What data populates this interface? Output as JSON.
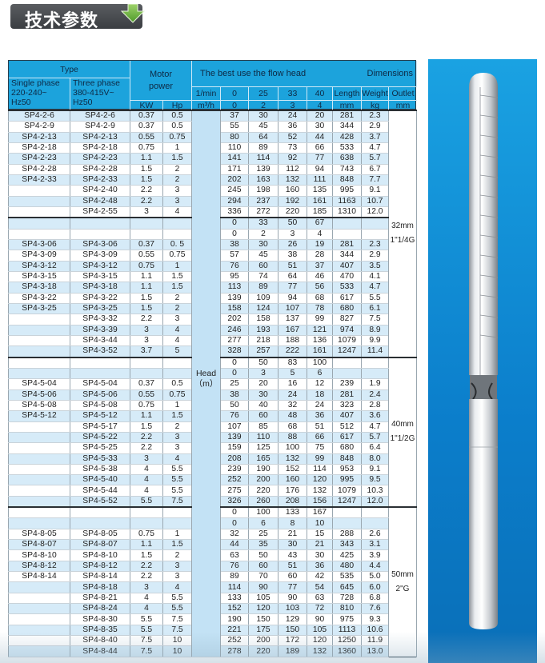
{
  "title": {
    "text": "技术参数",
    "icon": "green-down-arrow-icon"
  },
  "colors": {
    "header": "#1ca3dc",
    "stripe": "#d6ebf8",
    "head_column": "#c3e2f5",
    "panel": "#0b7ecb",
    "arrow": "#6cb33f"
  },
  "header": {
    "type": "Type",
    "single_phase": [
      "Single phase",
      "220-240~",
      "Hz50"
    ],
    "three_phase": [
      "Three phase",
      "380-415V~",
      "Hz50"
    ],
    "motor_power": [
      "Motor",
      "power"
    ],
    "kw": "KW",
    "hp": "Hp",
    "best_use": "The best use the flow head",
    "dimensions": "Dimensions",
    "lpm_label": "1/min",
    "m3h_label": "m³/h",
    "lpm": [
      "0",
      "25",
      "33",
      "40"
    ],
    "m3h": [
      "0",
      "2",
      "3",
      "4"
    ],
    "length": "Length",
    "weight": "Weight",
    "outlet": "Outlet",
    "length_unit": "mm",
    "weight_unit": "kg",
    "outlet_unit": "mm"
  },
  "head_label": [
    "Head",
    "（m）"
  ],
  "groups": [
    {
      "outlet": [
        "32mm",
        "1\"1/4G"
      ],
      "rows": [
        [
          "SP4-2-6",
          "SP4-2-6",
          "0.37",
          "0.5",
          "37",
          "30",
          "24",
          "20",
          "281",
          "2.3"
        ],
        [
          "SP4-2-9",
          "SP4-2-9",
          "0.37",
          "0.5",
          "55",
          "45",
          "36",
          "30",
          "344",
          "2.9"
        ],
        [
          "SP4-2-13",
          "SP4-2-13",
          "0.55",
          "0.75",
          "80",
          "64",
          "52",
          "44",
          "428",
          "3.7"
        ],
        [
          "SP4-2-18",
          "SP4-2-18",
          "0.75",
          "1",
          "110",
          "89",
          "73",
          "66",
          "533",
          "4.7"
        ],
        [
          "SP4-2-23",
          "SP4-2-23",
          "1.1",
          "1.5",
          "141",
          "114",
          "92",
          "77",
          "638",
          "5.7"
        ],
        [
          "SP4-2-28",
          "SP4-2-28",
          "1.5",
          "2",
          "171",
          "139",
          "112",
          "94",
          "743",
          "6.7"
        ],
        [
          "SP4-2-33",
          "SP4-2-33",
          "1.5",
          "2",
          "202",
          "163",
          "132",
          "111",
          "848",
          "7.7"
        ],
        [
          "",
          "SP4-2-40",
          "2.2",
          "3",
          "245",
          "198",
          "160",
          "135",
          "995",
          "9.1"
        ],
        [
          "",
          "SP4-2-48",
          "2.2",
          "3",
          "294",
          "237",
          "192",
          "161",
          "1163",
          "10.7"
        ],
        [
          "",
          "SP4-2-55",
          "3",
          "4",
          "336",
          "272",
          "220",
          "185",
          "1310",
          "12.0"
        ]
      ]
    },
    {
      "lpm": [
        "0",
        "33",
        "50",
        "67"
      ],
      "m3h": [
        "0",
        "2",
        "3",
        "4"
      ],
      "rows": [
        [
          "SP4-3-06",
          "SP4-3-06",
          "0.37",
          "0. 5",
          "38",
          "30",
          "26",
          "19",
          "281",
          "2.3"
        ],
        [
          "SP4-3-09",
          "SP4-3-09",
          "0.55",
          "0.75",
          "57",
          "45",
          "38",
          "28",
          "344",
          "2.9"
        ],
        [
          "SP4-3-12",
          "SP4-3-12",
          "0.75",
          "1",
          "76",
          "60",
          "51",
          "37",
          "407",
          "3.5"
        ],
        [
          "SP4-3-15",
          "SP4-3-15",
          "1.1",
          "1.5",
          "95",
          "74",
          "64",
          "46",
          "470",
          "4.1"
        ],
        [
          "SP4-3-18",
          "SP4-3-18",
          "1.1",
          "1.5",
          "113",
          "89",
          "77",
          "56",
          "533",
          "4.7"
        ],
        [
          "SP4-3-22",
          "SP4-3-22",
          "1.5",
          "2",
          "139",
          "109",
          "94",
          "68",
          "617",
          "5.5"
        ],
        [
          "SP4-3-25",
          "SP4-3-25",
          "1.5",
          "2",
          "158",
          "124",
          "107",
          "78",
          "680",
          "6.1"
        ],
        [
          "",
          "SP4-3-32",
          "2.2",
          "3",
          "202",
          "158",
          "137",
          "99",
          "827",
          "7.5"
        ],
        [
          "",
          "SP4-3-39",
          "3",
          "4",
          "246",
          "193",
          "167",
          "121",
          "974",
          "8.9"
        ],
        [
          "",
          "SP4-3-44",
          "3",
          "4",
          "277",
          "218",
          "188",
          "136",
          "1079",
          "9.9"
        ],
        [
          "",
          "SP4-3-52",
          "3.7",
          "5",
          "328",
          "257",
          "222",
          "161",
          "1247",
          "11.4"
        ]
      ]
    },
    {
      "lpm": [
        "0",
        "50",
        "83",
        "100"
      ],
      "m3h": [
        "0",
        "3",
        "5",
        "6"
      ],
      "outlet": [
        "40mm",
        "1\"1/2G"
      ],
      "rows": [
        [
          "SP4-5-04",
          "SP4-5-04",
          "0.37",
          "0.5",
          "25",
          "20",
          "16",
          "12",
          "239",
          "1.9"
        ],
        [
          "SP4-5-06",
          "SP4-5-06",
          "0.55",
          "0.75",
          "38",
          "30",
          "24",
          "18",
          "281",
          "2.4"
        ],
        [
          "SP4-5-08",
          "SP4-5-08",
          "0.75",
          "1",
          "50",
          "40",
          "32",
          "24",
          "323",
          "2.8"
        ],
        [
          "SP4-5-12",
          "SP4-5-12",
          "1.1",
          "1.5",
          "76",
          "60",
          "48",
          "36",
          "407",
          "3.6"
        ],
        [
          "",
          "SP4-5-17",
          "1.5",
          "2",
          "107",
          "85",
          "68",
          "51",
          "512",
          "4.7"
        ],
        [
          "",
          "SP4-5-22",
          "2.2",
          "3",
          "139",
          "110",
          "88",
          "66",
          "617",
          "5.7"
        ],
        [
          "",
          "SP4-5-25",
          "2.2",
          "3",
          "159",
          "125",
          "100",
          "75",
          "680",
          "6.4"
        ],
        [
          "",
          "SP4-5-33",
          "3",
          "4",
          "208",
          "165",
          "132",
          "99",
          "848",
          "8.0"
        ],
        [
          "",
          "SP4-5-38",
          "4",
          "5.5",
          "239",
          "190",
          "152",
          "114",
          "953",
          "9.1"
        ],
        [
          "",
          "SP4-5-40",
          "4",
          "5.5",
          "252",
          "200",
          "160",
          "120",
          "995",
          "9.5"
        ],
        [
          "",
          "SP4-5-44",
          "4",
          "5.5",
          "275",
          "220",
          "176",
          "132",
          "1079",
          "10.3"
        ],
        [
          "",
          "SP4-5-52",
          "5.5",
          "7.5",
          "326",
          "260",
          "208",
          "156",
          "1247",
          "12.0"
        ]
      ]
    },
    {
      "lpm": [
        "0",
        "100",
        "133",
        "167"
      ],
      "m3h": [
        "0",
        "6",
        "8",
        "10"
      ],
      "outlet": [
        "50mm",
        "2\"G"
      ],
      "rows": [
        [
          "SP4-8-05",
          "SP4-8-05",
          "0.75",
          "1",
          "32",
          "25",
          "21",
          "15",
          "288",
          "2.6"
        ],
        [
          "SP4-8-07",
          "SP4-8-07",
          "1.1",
          "1.5",
          "44",
          "35",
          "30",
          "21",
          "343",
          "3.1"
        ],
        [
          "SP4-8-10",
          "SP4-8-10",
          "1.5",
          "2",
          "63",
          "50",
          "43",
          "30",
          "425",
          "3.9"
        ],
        [
          "SP4-8-12",
          "SP4-8-12",
          "2.2",
          "3",
          "76",
          "60",
          "51",
          "36",
          "480",
          "4.4"
        ],
        [
          "SP4-8-14",
          "SP4-8-14",
          "2.2",
          "3",
          "89",
          "70",
          "60",
          "42",
          "535",
          "5.0"
        ],
        [
          "",
          "SP4-8-18",
          "3",
          "4",
          "114",
          "90",
          "77",
          "54",
          "645",
          "6.0"
        ],
        [
          "",
          "SP4-8-21",
          "4",
          "5.5",
          "133",
          "105",
          "90",
          "63",
          "728",
          "6.8"
        ],
        [
          "",
          "SP4-8-24",
          "4",
          "5.5",
          "152",
          "120",
          "103",
          "72",
          "810",
          "7.6"
        ],
        [
          "",
          "SP4-8-30",
          "5.5",
          "7.5",
          "190",
          "150",
          "129",
          "90",
          "975",
          "9.3"
        ],
        [
          "",
          "SP4-8-35",
          "5.5",
          "7.5",
          "221",
          "175",
          "150",
          "105",
          "1113",
          "10.6"
        ],
        [
          "",
          "SP4-8-40",
          "7.5",
          "10",
          "252",
          "200",
          "172",
          "120",
          "1250",
          "11.9"
        ],
        [
          "",
          "SP4-8-44",
          "7.5",
          "10",
          "278",
          "220",
          "189",
          "132",
          "1360",
          "13.0"
        ]
      ]
    }
  ]
}
